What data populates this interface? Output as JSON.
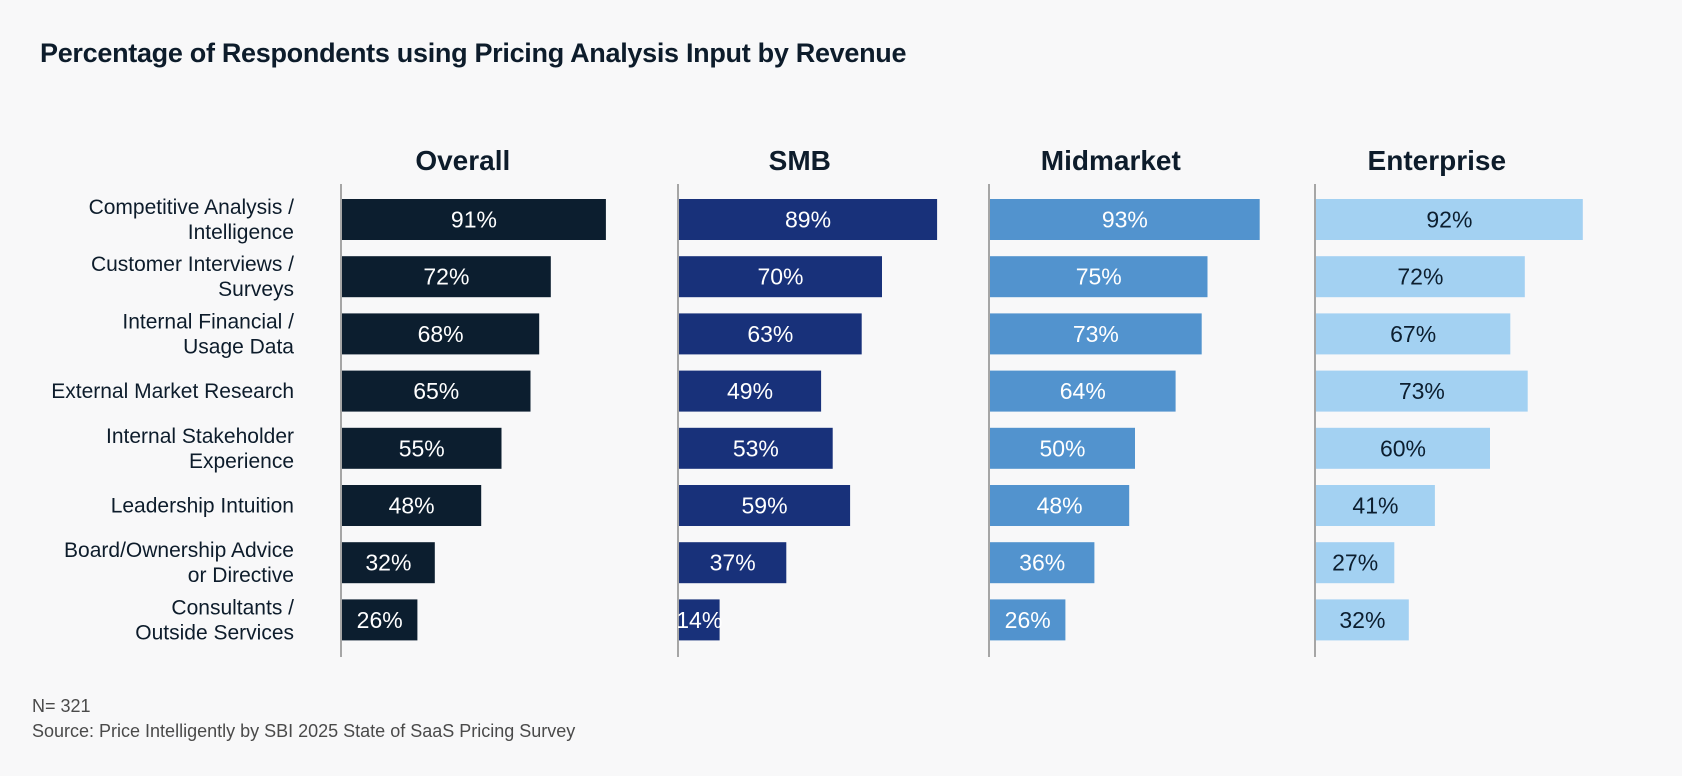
{
  "chart_data": {
    "type": "bar",
    "orientation": "horizontal",
    "layout": "small-multiples",
    "title": "Percentage of Respondents using Pricing Analysis Input by Revenue",
    "categories": [
      [
        "Competitive Analysis /",
        "Intelligence"
      ],
      [
        "Customer Interviews /",
        "Surveys"
      ],
      [
        "Internal Financial /",
        "Usage Data"
      ],
      [
        "External Market Research"
      ],
      [
        "Internal Stakeholder",
        "Experience"
      ],
      [
        "Leadership Intuition"
      ],
      [
        "Board/Ownership Advice",
        "or Directive"
      ],
      [
        "Consultants /",
        "Outside Services"
      ]
    ],
    "series": [
      {
        "name": "Overall",
        "color": "#0c1e2f",
        "label_color": "#ffffff",
        "values": [
          91,
          72,
          68,
          65,
          55,
          48,
          32,
          26
        ],
        "labels": [
          "91%",
          "72%",
          "68%",
          "65%",
          "55%",
          "48%",
          "32%",
          "26%"
        ]
      },
      {
        "name": "SMB",
        "color": "#18317a",
        "label_color": "#ffffff",
        "values": [
          89,
          70,
          63,
          49,
          53,
          59,
          37,
          14
        ],
        "labels": [
          "89%",
          "70%",
          "63%",
          "49%",
          "53%",
          "59%",
          "37%",
          "14%"
        ]
      },
      {
        "name": "Midmarket",
        "color": "#5293ce",
        "label_color": "#ffffff",
        "values": [
          93,
          75,
          73,
          64,
          50,
          48,
          36,
          26
        ],
        "labels": [
          "93%",
          "75%",
          "73%",
          "64%",
          "50%",
          "48%",
          "36%",
          "26%"
        ]
      },
      {
        "name": "Enterprise",
        "color": "#a3d1f2",
        "label_color": "#0c1e2f",
        "values": [
          92,
          72,
          67,
          73,
          60,
          41,
          27,
          32
        ],
        "labels": [
          "92%",
          "72%",
          "67%",
          "73%",
          "60%",
          "41%",
          "27%",
          "32%"
        ]
      }
    ],
    "xlim": [
      0,
      100
    ],
    "grid": false,
    "legend": "none"
  },
  "footnotes": {
    "n": "N= 321",
    "source": "Source: Price Intelligently by SBI 2025 State of SaaS Pricing Survey"
  }
}
